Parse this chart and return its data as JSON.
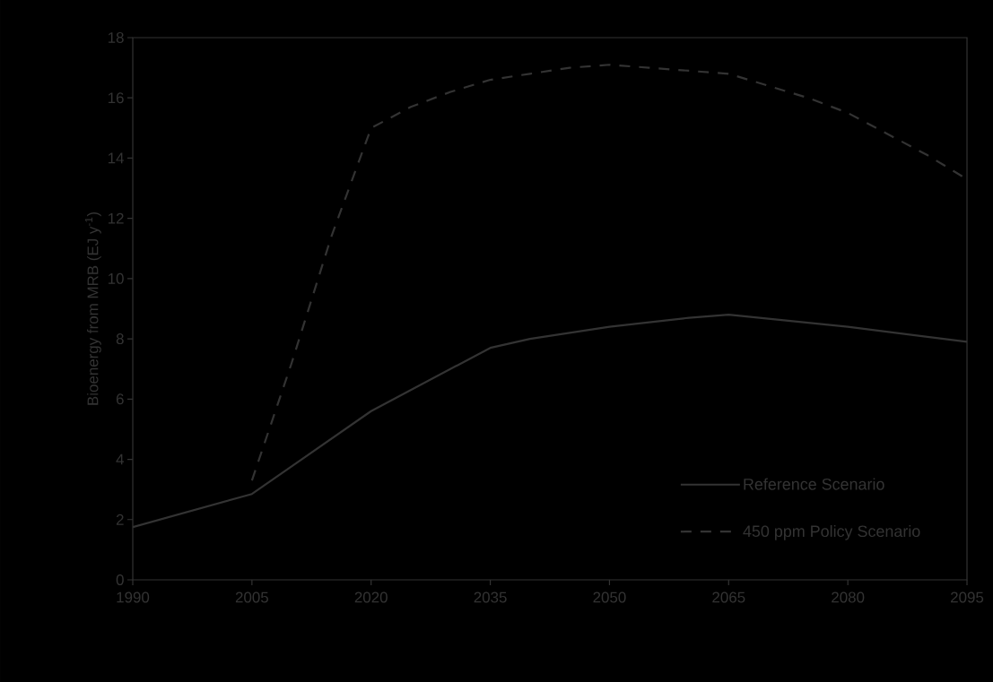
{
  "chart_data": {
    "type": "line",
    "ylabel": "Bioenergy from MRB (EJ y$^{-1}$)",
    "xlim": [
      1990,
      2095
    ],
    "xticks": [
      1990,
      2005,
      2020,
      2035,
      2050,
      2065,
      2080,
      2095
    ],
    "ylim": [
      0,
      18
    ],
    "yticks": [
      0,
      2,
      4,
      6,
      8,
      10,
      12,
      14,
      16,
      18
    ],
    "legend": "bottom right",
    "grid": false,
    "marker": "none",
    "series": [
      {
        "name": "Reference Scenario",
        "color": "#333333",
        "line_style": "solid",
        "x": [
          1990,
          2005,
          2020,
          2035,
          2040,
          2045,
          2050,
          2055,
          2060,
          2065,
          2080,
          2095
        ],
        "values": [
          1.75,
          2.85,
          5.6,
          7.7,
          8.0,
          8.2,
          8.4,
          8.55,
          8.7,
          8.8,
          8.4,
          7.9
        ]
      },
      {
        "name": "450 ppm Policy Scenario",
        "color": "#333333",
        "line_style": "dashed",
        "x": [
          2005,
          2010,
          2015,
          2020,
          2025,
          2030,
          2035,
          2040,
          2045,
          2050,
          2055,
          2060,
          2065,
          2070,
          2075,
          2080,
          2085,
          2090,
          2095
        ],
        "values": [
          3.3,
          7.2,
          11.4,
          15.0,
          15.7,
          16.2,
          16.6,
          16.8,
          17.0,
          17.1,
          17.0,
          16.9,
          16.8,
          16.4,
          16.0,
          15.5,
          14.8,
          14.1,
          13.3
        ]
      }
    ]
  }
}
